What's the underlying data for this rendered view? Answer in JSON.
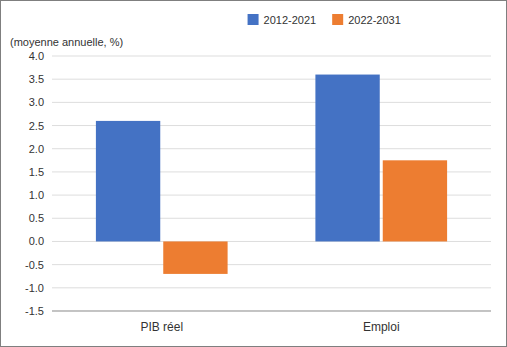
{
  "chart_data": {
    "type": "bar",
    "ylabel": "(moyenne annuelle, %)",
    "categories": [
      "PIB réel",
      "Emploi"
    ],
    "series": [
      {
        "name": "2012-2021",
        "color": "#4472C4",
        "values": [
          2.6,
          3.6
        ]
      },
      {
        "name": "2022-2031",
        "color": "#ED7D31",
        "values": [
          -0.7,
          1.75
        ]
      }
    ],
    "ylim": [
      -1.5,
      4.0
    ],
    "yticks": [
      -1.5,
      {
        "value": -1.0,
        "label": "-1.0"
      },
      -0.5,
      {
        "value": 0.0,
        "label": "0.0"
      },
      0.5,
      {
        "value": 1.0,
        "label": "1.0"
      },
      1.5,
      {
        "value": 2.0,
        "label": "2.0"
      },
      2.5,
      {
        "value": 3.0,
        "label": "3.0"
      },
      3.5,
      {
        "value": 4.0,
        "label": "4.0"
      }
    ],
    "grid": true,
    "legend": "top"
  }
}
